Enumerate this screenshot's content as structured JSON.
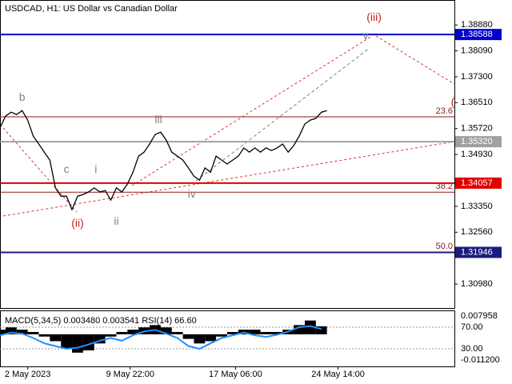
{
  "chart_data": [
    {
      "type": "line",
      "title": "USDCAD, H1:  US Dollar vs Canadian Dollar",
      "color": "#000000",
      "values": [
        1.3574,
        1.361,
        1.3622,
        1.3615,
        1.3627,
        1.3598,
        1.3549,
        1.3525,
        1.35,
        1.3476,
        1.3391,
        1.3366,
        1.3366,
        1.3325,
        1.3366,
        1.3371,
        1.3379,
        1.3391,
        1.3379,
        1.3383,
        1.3354,
        1.3391,
        1.3379,
        1.3403,
        1.3439,
        1.3488,
        1.35,
        1.3525,
        1.3554,
        1.3561,
        1.3537,
        1.35,
        1.3488,
        1.3476,
        1.3452,
        1.3427,
        1.3415,
        1.3452,
        1.3439,
        1.3488,
        1.3476,
        1.3464,
        1.3476,
        1.3488,
        1.3513,
        1.35,
        1.3513,
        1.35,
        1.3513,
        1.3505,
        1.3513,
        1.3525,
        1.35,
        1.352,
        1.3549,
        1.3586,
        1.3598,
        1.3603,
        1.3622,
        1.3627
      ],
      "xlim": [
        0,
        82
      ],
      "xticks": [
        {
          "value": 5,
          "label": "2 May 2023"
        },
        {
          "value": 23.5,
          "label": "9 May 22:00"
        },
        {
          "value": 42.5,
          "label": "17 May 06:00"
        },
        {
          "value": 61,
          "label": "24 May 14:00"
        }
      ],
      "ylim": [
        1.3025,
        1.3964
      ],
      "yticks": [
        {
          "value": 1.3888,
          "label": "1.38880"
        },
        {
          "value": 1.3809,
          "label": "1.38090"
        },
        {
          "value": 1.373,
          "label": "1.37300"
        },
        {
          "value": 1.3651,
          "label": "1.36510"
        },
        {
          "value": 1.3572,
          "label": "1.35720"
        },
        {
          "value": 1.3493,
          "label": "1.34930"
        },
        {
          "value": 1.3335,
          "label": "1.33350"
        },
        {
          "value": 1.3256,
          "label": "1.32560"
        },
        {
          "value": 1.3098,
          "label": "1.30980"
        }
      ],
      "levels": [
        {
          "value": 1.38588,
          "color": "#0000cc"
        },
        {
          "value": 1.3532,
          "label": "1.35320",
          "color": "#a0a0a0"
        },
        {
          "value": 1.34057,
          "color": "#e00000"
        },
        {
          "value": 1.31946,
          "color": "#1a1a80"
        }
      ],
      "fib_levels": [
        {
          "level": "23.6",
          "price": 1.3608
        },
        {
          "level": "38.2",
          "price": 1.3378
        },
        {
          "level": "50.0",
          "price": 1.3195
        }
      ],
      "annotations": [
        {
          "text": "b",
          "x": 4,
          "y": 1.3666,
          "color": "#808080"
        },
        {
          "text": "c",
          "x": 12,
          "y": 1.3446,
          "color": "#808080"
        },
        {
          "text": "(ii)",
          "x": 14,
          "y": 1.3281,
          "color": "#cc2020"
        },
        {
          "text": "i",
          "x": 17.3,
          "y": 1.3446,
          "color": "#808080"
        },
        {
          "text": "ii",
          "x": 21,
          "y": 1.3288,
          "color": "#808080"
        },
        {
          "text": "iii",
          "x": 28.6,
          "y": 1.3598,
          "color": "#808080"
        },
        {
          "text": "iv",
          "x": 34.6,
          "y": 1.3371,
          "color": "#808080"
        },
        {
          "text": "v",
          "x": 66,
          "y": 1.3854,
          "color": "#808080"
        },
        {
          "text": "(iii)",
          "x": 67.5,
          "y": 1.391,
          "color": "#cc2020"
        },
        {
          "text": "(",
          "x": 81.7,
          "y": 1.3651,
          "color": "#cc2020"
        }
      ]
    },
    {
      "type": "indicator",
      "title": "MACD(5,34,5) 0.003480 0.003541 RSI(14) 66.60",
      "xlim": [
        0,
        41
      ],
      "ylim": [
        -0.01399,
        0.0104
      ],
      "yticks": [
        0.007958,
        {
          "value": -0.0112,
          "label": "-0.011200"
        }
      ],
      "y2lim": [
        -2.6,
        101.1
      ],
      "y2ticks": [
        {
          "value": 70,
          "label": "70.00"
        },
        {
          "value": 30,
          "label": "30.00"
        }
      ],
      "series": [
        {
          "name": "MACD",
          "color": "#000000",
          "values": [
            0.002,
            0.003,
            0.002,
            0.001,
            -0.001,
            -0.003,
            -0.006,
            -0.008,
            -0.007,
            -0.004,
            -0.001,
            0.001,
            0.002,
            0.003,
            0.004,
            0.003,
            0.001,
            -0.002,
            -0.004,
            -0.003,
            -0.001,
            0.001,
            0.002,
            0.002,
            0.001,
            0.001,
            0.002,
            0.004,
            0.006,
            0.00348
          ]
        },
        {
          "name": "RSI",
          "color": "#1e90ff",
          "axis": "y2",
          "values": [
            55,
            60,
            58,
            50,
            40,
            35,
            30,
            32,
            38,
            45,
            50,
            45,
            55,
            62,
            65,
            58,
            50,
            35,
            30,
            40,
            50,
            55,
            60,
            55,
            52,
            56,
            62,
            70,
            72,
            66.6
          ]
        }
      ]
    }
  ]
}
